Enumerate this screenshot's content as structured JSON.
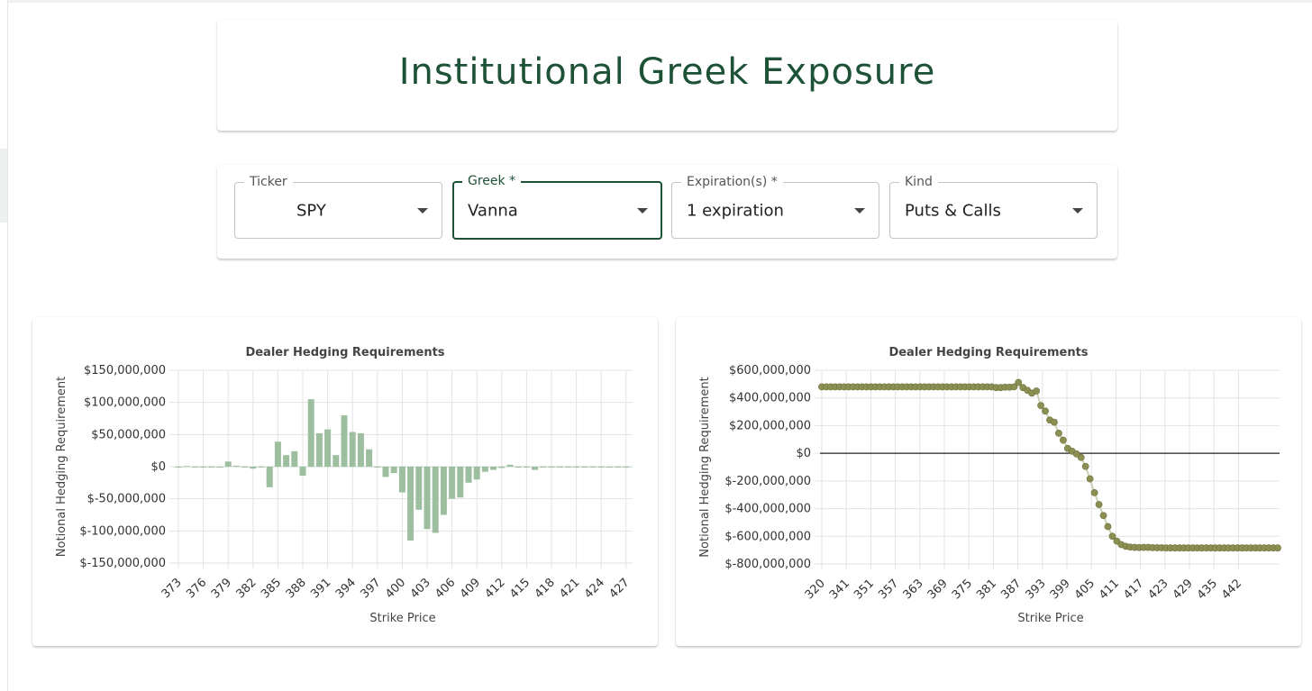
{
  "page": {
    "title": "Institutional Greek Exposure"
  },
  "controls": {
    "ticker": {
      "label": "Ticker",
      "value": "SPY"
    },
    "greek": {
      "label": "Greek *",
      "value": "Vanna"
    },
    "expirations": {
      "label": "Expiration(s) *",
      "value": "1 expiration"
    },
    "kind": {
      "label": "Kind",
      "value": "Puts & Calls"
    }
  },
  "icons": {
    "dropdown": "chevron-down-icon"
  },
  "colors": {
    "accent": "#1d5237",
    "bar": "#9dbf9f",
    "line_point": "#8c8f52",
    "line": "#c8d2b4"
  },
  "chart_data": [
    {
      "type": "bar",
      "title": "Dealer Hedging Requirements",
      "xlabel": "Strike Price",
      "ylabel": "Notional Hedging Requirement",
      "ylim": [
        -150000000,
        150000000
      ],
      "yticks": [
        {
          "value": 150000000,
          "label": "$150,000,000"
        },
        {
          "value": 100000000,
          "label": "$100,000,000"
        },
        {
          "value": 50000000,
          "label": "$50,000,000"
        },
        {
          "value": 0,
          "label": "$0"
        },
        {
          "value": -50000000,
          "label": "$-50,000,000"
        },
        {
          "value": -100000000,
          "label": "$-100,000,000"
        },
        {
          "value": -150000000,
          "label": "$-150,000,000"
        }
      ],
      "xtick_labels": [
        "373",
        "376",
        "379",
        "382",
        "385",
        "388",
        "391",
        "394",
        "397",
        "400",
        "403",
        "406",
        "409",
        "412",
        "415",
        "418",
        "421",
        "424",
        "427"
      ],
      "categories": [
        373,
        374,
        375,
        376,
        377,
        378,
        379,
        380,
        381,
        382,
        383,
        384,
        385,
        386,
        387,
        388,
        389,
        390,
        391,
        392,
        393,
        394,
        395,
        396,
        397,
        398,
        399,
        400,
        401,
        402,
        403,
        404,
        405,
        406,
        407,
        408,
        409,
        410,
        411,
        412,
        413,
        414,
        415,
        416,
        417,
        418,
        419,
        420,
        421,
        422,
        423,
        424,
        425,
        426,
        427
      ],
      "values": [
        0,
        1000000,
        0,
        0,
        0,
        0,
        8000000,
        1500000,
        0,
        -3000000,
        0,
        -32000000,
        39000000,
        18000000,
        24000000,
        -14000000,
        105000000,
        52000000,
        58000000,
        18000000,
        80000000,
        54000000,
        52000000,
        27000000,
        0,
        -16000000,
        -10000000,
        -40000000,
        -115000000,
        -67000000,
        -97000000,
        -103000000,
        -75000000,
        -50000000,
        -48000000,
        -25000000,
        -20000000,
        -8000000,
        -5000000,
        -2000000,
        3000000,
        0,
        0,
        -5000000,
        0,
        0,
        0,
        0,
        0,
        0,
        0,
        -1000000,
        0,
        -1000000,
        0
      ],
      "grid": true
    },
    {
      "type": "line",
      "title": "Dealer Hedging Requirements",
      "xlabel": "Strike Price",
      "ylabel": "Notional Hedging Requirement",
      "ylim": [
        -800000000,
        600000000
      ],
      "yticks": [
        {
          "value": 600000000,
          "label": "$600,000,000"
        },
        {
          "value": 400000000,
          "label": "$400,000,000"
        },
        {
          "value": 200000000,
          "label": "$200,000,000"
        },
        {
          "value": 0,
          "label": "$0"
        },
        {
          "value": -200000000,
          "label": "$-200,000,000"
        },
        {
          "value": -400000000,
          "label": "$-400,000,000"
        },
        {
          "value": -600000000,
          "label": "$-600,000,000"
        },
        {
          "value": -800000000,
          "label": "$-800,000,000"
        }
      ],
      "xtick_labels": [
        "320",
        "341",
        "351",
        "357",
        "363",
        "369",
        "375",
        "381",
        "387",
        "393",
        "399",
        "405",
        "411",
        "417",
        "423",
        "429",
        "435",
        "442"
      ],
      "x": [
        320,
        341,
        345,
        346,
        347,
        348,
        349,
        350,
        351,
        352,
        353,
        354,
        355,
        356,
        357,
        358,
        359,
        360,
        361,
        362,
        363,
        364,
        365,
        366,
        367,
        368,
        369,
        370,
        371,
        372,
        373,
        374,
        375,
        376,
        377,
        378,
        379,
        380,
        381,
        382,
        383,
        384,
        385,
        386,
        387,
        388,
        389,
        390,
        391,
        392,
        393,
        394,
        395,
        396,
        397,
        398,
        399,
        400,
        401,
        402,
        403,
        404,
        405,
        406,
        407,
        408,
        409,
        410,
        411,
        412,
        413,
        414,
        415,
        416,
        417,
        418,
        419,
        420,
        421,
        422,
        423,
        424,
        425,
        426,
        427,
        428,
        429,
        430,
        431,
        432,
        433,
        434,
        435,
        436,
        437,
        438,
        439,
        440,
        441,
        442,
        443,
        444,
        445
      ],
      "y": [
        480000000,
        480000000,
        480000000,
        480000000,
        480000000,
        480000000,
        480000000,
        480000000,
        480000000,
        480000000,
        480000000,
        480000000,
        480000000,
        480000000,
        480000000,
        480000000,
        480000000,
        480000000,
        480000000,
        480000000,
        480000000,
        480000000,
        480000000,
        480000000,
        480000000,
        480000000,
        480000000,
        480000000,
        480000000,
        480000000,
        480000000,
        480000000,
        480000000,
        480000000,
        480000000,
        480000000,
        480000000,
        480000000,
        480000000,
        475000000,
        475000000,
        478000000,
        478000000,
        480000000,
        512000000,
        475000000,
        455000000,
        435000000,
        450000000,
        345000000,
        305000000,
        240000000,
        225000000,
        145000000,
        95000000,
        35000000,
        15000000,
        -5000000,
        -30000000,
        -95000000,
        -185000000,
        -285000000,
        -370000000,
        -450000000,
        -530000000,
        -600000000,
        -635000000,
        -660000000,
        -672000000,
        -678000000,
        -680000000,
        -681000000,
        -680000000,
        -680000000,
        -682000000,
        -683000000,
        -683000000,
        -684000000,
        -684000000,
        -684000000,
        -684000000,
        -684000000,
        -684000000,
        -684000000,
        -684000000,
        -684000000,
        -684000000,
        -684000000,
        -684000000,
        -684000000,
        -684000000,
        -684000000,
        -684000000,
        -684000000,
        -684000000,
        -684000000,
        -684000000,
        -684000000,
        -684000000,
        -684000000,
        -684000000,
        -684000000,
        -684000000
      ],
      "grid": true
    }
  ]
}
